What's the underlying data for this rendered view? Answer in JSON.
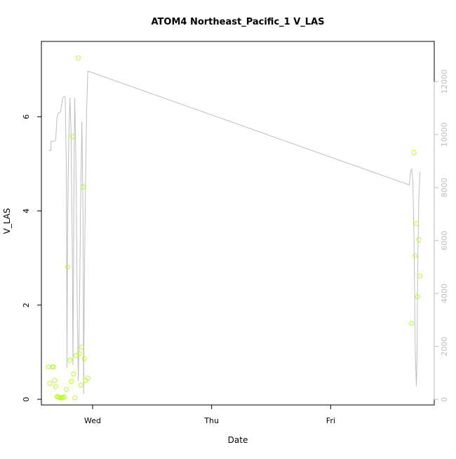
{
  "chart_data": {
    "type": "scatter",
    "title": "ATOM4 Northeast_Pacific_1 V_LAS",
    "xlabel": "Date",
    "ylabel": "V_LAS",
    "x_ticks": [
      {
        "x": 0.0,
        "label": "Wed"
      },
      {
        "x": 1.0,
        "label": "Thu"
      },
      {
        "x": 2.0,
        "label": "Fri"
      }
    ],
    "xlim": [
      -0.43,
      2.87
    ],
    "ylim": [
      -0.12,
      7.6
    ],
    "y_ticks": [
      0,
      2,
      4,
      6
    ],
    "y2lim": [
      -210,
      13520
    ],
    "y2_ticks": [
      0,
      2000,
      4000,
      6000,
      8000,
      10000,
      12000
    ],
    "colors": {
      "points": "#b2ff1a",
      "line": "#bebebe",
      "axis": "#000000",
      "axis_right": "#bebebe"
    },
    "series": [
      {
        "type": "points",
        "axis": "left",
        "points": [
          [
            -0.37,
            0.69
          ],
          [
            -0.36,
            0.34
          ],
          [
            -0.34,
            0.69
          ],
          [
            -0.33,
            0.69
          ],
          [
            -0.32,
            0.4
          ],
          [
            -0.31,
            0.27
          ],
          [
            -0.3,
            0.06
          ],
          [
            -0.29,
            0.05
          ],
          [
            -0.28,
            0.04
          ],
          [
            -0.27,
            0.03
          ],
          [
            -0.26,
            0.03
          ],
          [
            -0.25,
            0.04
          ],
          [
            -0.24,
            0.05
          ],
          [
            -0.22,
            0.21
          ],
          [
            -0.21,
            2.81
          ],
          [
            -0.19,
            0.83
          ],
          [
            -0.18,
            0.38
          ],
          [
            -0.17,
            5.58
          ],
          [
            -0.16,
            0.54
          ],
          [
            -0.15,
            0.03
          ],
          [
            -0.14,
            0.93
          ],
          [
            -0.12,
            7.25
          ],
          [
            -0.11,
            0.97
          ],
          [
            -0.1,
            0.3
          ],
          [
            -0.09,
            1.11
          ],
          [
            -0.08,
            4.51
          ],
          [
            -0.07,
            0.86
          ],
          [
            -0.06,
            0.4
          ],
          [
            -0.04,
            0.45
          ],
          [
            2.68,
            1.61
          ],
          [
            2.7,
            5.24
          ],
          [
            2.71,
            3.05
          ],
          [
            2.72,
            3.73
          ],
          [
            2.73,
            2.18
          ],
          [
            2.74,
            3.39
          ],
          [
            2.75,
            2.62
          ]
        ]
      },
      {
        "type": "line",
        "axis": "right",
        "points": [
          [
            -0.37,
            9400
          ],
          [
            -0.35,
            9400
          ],
          [
            -0.35,
            9750
          ],
          [
            -0.34,
            9750
          ],
          [
            -0.32,
            9750
          ],
          [
            -0.31,
            9800
          ],
          [
            -0.3,
            10600
          ],
          [
            -0.29,
            10800
          ],
          [
            -0.27,
            10850
          ],
          [
            -0.25,
            11400
          ],
          [
            -0.24,
            11450
          ],
          [
            -0.23,
            11400
          ],
          [
            -0.22,
            8800
          ],
          [
            -0.215,
            1200
          ],
          [
            -0.21,
            6400
          ],
          [
            -0.2,
            9800
          ],
          [
            -0.19,
            11400
          ],
          [
            -0.18,
            10000
          ],
          [
            -0.17,
            5500
          ],
          [
            -0.165,
            1300
          ],
          [
            -0.16,
            5000
          ],
          [
            -0.155,
            9500
          ],
          [
            -0.15,
            11400
          ],
          [
            -0.14,
            9000
          ],
          [
            -0.13,
            4000
          ],
          [
            -0.12,
            700
          ],
          [
            -0.11,
            3500
          ],
          [
            -0.1,
            7500
          ],
          [
            -0.09,
            10500
          ],
          [
            -0.08,
            7000
          ],
          [
            -0.075,
            200
          ],
          [
            -0.07,
            4000
          ],
          [
            -0.06,
            8000
          ],
          [
            -0.05,
            11000
          ],
          [
            -0.04,
            12400
          ],
          [
            2.66,
            8100
          ],
          [
            2.67,
            8600
          ],
          [
            2.68,
            8700
          ],
          [
            2.69,
            8250
          ],
          [
            2.7,
            6000
          ],
          [
            2.71,
            2000
          ],
          [
            2.72,
            500
          ],
          [
            2.725,
            1500
          ],
          [
            2.73,
            4500
          ],
          [
            2.74,
            7500
          ],
          [
            2.75,
            8600
          ]
        ]
      }
    ]
  }
}
